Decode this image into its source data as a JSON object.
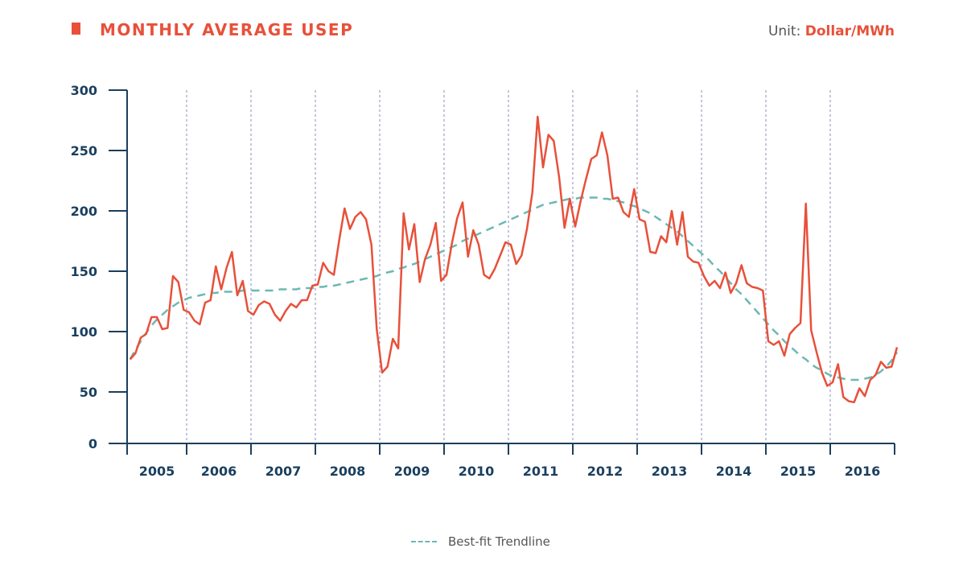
{
  "header": {
    "title": "MONTHLY AVERAGE USEP",
    "unit_label": "Unit:",
    "unit_value": "Dollar/MWh"
  },
  "colors": {
    "series": "#e8503a",
    "trend": "#6cb8b4",
    "axis": "#1a3f5e",
    "grid": "#8a8fb8"
  },
  "legend": {
    "trend_label": "Best-fit Trendline"
  },
  "chart_data": {
    "type": "line",
    "title": "MONTHLY AVERAGE USEP",
    "xlabel": "",
    "ylabel": "Dollar/MWh",
    "ylim": [
      0,
      300
    ],
    "yticks": [
      0,
      50,
      100,
      150,
      200,
      250,
      300
    ],
    "ytick_labels": [
      "0",
      "50",
      "100",
      "150",
      "200",
      "250",
      "300"
    ],
    "categories": [
      "2005",
      "2006",
      "2007",
      "2008",
      "2009",
      "2010",
      "2011",
      "2012",
      "2013",
      "2014",
      "2015",
      "2016"
    ],
    "grid": "vertical dashed lines at year boundaries",
    "legend_position": "bottom-center",
    "x_start": "2005-02",
    "x_end": "2016-12",
    "series": [
      {
        "name": "Monthly Average USEP",
        "style": "solid",
        "values": [
          77,
          82,
          95,
          98,
          112,
          112,
          102,
          103,
          146,
          141,
          118,
          116,
          109,
          106,
          124,
          126,
          154,
          135,
          153,
          166,
          130,
          142,
          117,
          114,
          122,
          125,
          123,
          114,
          109,
          117,
          123,
          120,
          126,
          126,
          138,
          139,
          157,
          150,
          147,
          176,
          202,
          185,
          195,
          199,
          193,
          172,
          102,
          66,
          71,
          94,
          86,
          198,
          168,
          189,
          141,
          160,
          172,
          190,
          142,
          147,
          173,
          194,
          207,
          162,
          184,
          172,
          147,
          144,
          152,
          163,
          174,
          172,
          156,
          163,
          185,
          215,
          278,
          236,
          263,
          258,
          228,
          186,
          210,
          187,
          208,
          226,
          243,
          246,
          265,
          246,
          210,
          211,
          199,
          195,
          218,
          193,
          191,
          166,
          165,
          179,
          174,
          200,
          172,
          199,
          162,
          158,
          157,
          146,
          138,
          142,
          136,
          149,
          132,
          140,
          155,
          140,
          137,
          136,
          134,
          92,
          89,
          92,
          80,
          98,
          103,
          107,
          206,
          101,
          83,
          66,
          55,
          58,
          73,
          45,
          41,
          40,
          53,
          46,
          60,
          64,
          75,
          70,
          71,
          87
        ]
      },
      {
        "name": "Best-fit Trendline",
        "style": "dashed",
        "values": [
          77,
          85,
          92,
          99,
          105,
          110,
          114,
          118,
          121,
          124,
          126,
          128,
          129,
          130,
          131,
          132,
          132,
          133,
          133,
          133,
          133,
          134,
          134,
          134,
          134,
          134,
          134,
          134,
          135,
          135,
          135,
          135,
          136,
          136,
          136,
          137,
          137,
          138,
          138,
          139,
          140,
          141,
          142,
          143,
          144,
          145,
          146,
          148,
          149,
          150,
          152,
          153,
          155,
          156,
          158,
          160,
          162,
          164,
          166,
          168,
          170,
          172,
          175,
          177,
          179,
          181,
          183,
          185,
          187,
          189,
          191,
          193,
          195,
          197,
          199,
          201,
          203,
          205,
          206,
          207,
          208,
          209,
          210,
          210,
          211,
          211,
          211,
          211,
          210,
          210,
          209,
          208,
          207,
          205,
          204,
          202,
          200,
          198,
          195,
          192,
          189,
          186,
          183,
          179,
          175,
          171,
          167,
          163,
          159,
          154,
          150,
          145,
          140,
          135,
          131,
          126,
          121,
          116,
          111,
          106,
          101,
          97,
          92,
          88,
          84,
          80,
          77,
          73,
          70,
          68,
          65,
          63,
          62,
          61,
          60,
          60,
          60,
          61,
          62,
          64,
          67,
          71,
          76,
          83
        ]
      }
    ]
  }
}
